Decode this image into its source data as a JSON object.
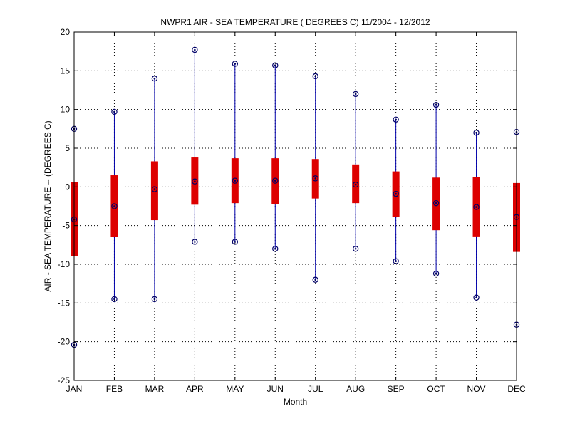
{
  "chart_data": {
    "type": "box",
    "title": "NWPR1  AIR - SEA TEMPERATURE ( DEGREES C) 11/2004 - 12/2012",
    "xlabel": "Month",
    "ylabel": "AIR - SEA TEMPERATURE -- (DEGREES C)",
    "ylim": [
      -25,
      20
    ],
    "yticks": [
      -25,
      -20,
      -15,
      -10,
      -5,
      0,
      5,
      10,
      15,
      20
    ],
    "grid": true,
    "categories": [
      "JAN",
      "FEB",
      "MAR",
      "APR",
      "MAY",
      "JUN",
      "JUL",
      "AUG",
      "SEP",
      "OCT",
      "NOV",
      "DEC"
    ],
    "max": [
      7.5,
      9.7,
      14.0,
      17.7,
      15.9,
      15.7,
      14.3,
      12.0,
      8.7,
      10.6,
      7.0,
      7.1
    ],
    "q3": [
      0.6,
      1.5,
      3.3,
      3.8,
      3.7,
      3.7,
      3.6,
      2.9,
      2.0,
      1.2,
      1.3,
      0.5
    ],
    "median": [
      -4.2,
      -2.5,
      -0.3,
      0.7,
      0.8,
      0.8,
      1.1,
      0.3,
      -0.9,
      -2.1,
      -2.6,
      -3.9
    ],
    "q1": [
      -8.9,
      -6.5,
      -4.3,
      -2.3,
      -2.1,
      -2.2,
      -1.5,
      -2.1,
      -3.9,
      -5.6,
      -6.4,
      -8.4
    ],
    "min": [
      -20.4,
      -14.5,
      -14.5,
      -7.1,
      -7.1,
      -8.0,
      -12.0,
      -8.0,
      -9.6,
      -11.2,
      -14.3,
      -17.8
    ],
    "colors": {
      "whisker": "#0000aa",
      "box": "#dd0000",
      "marker": "#000066",
      "grid": "#000000",
      "axis": "#000000"
    }
  }
}
